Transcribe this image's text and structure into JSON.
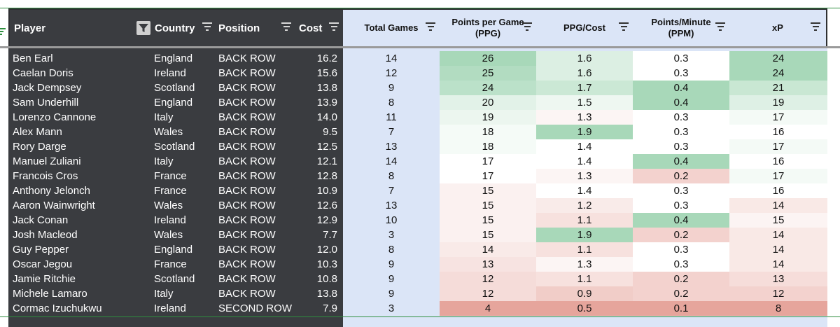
{
  "colors": {
    "dark_panel": "#3a3c40",
    "blue_panel": "#dbe5f7",
    "high": "#a8d8b9",
    "low": "#e6a59c"
  },
  "headers": {
    "player": "Player",
    "country": "Country",
    "position": "Position",
    "cost": "Cost",
    "total_games": "Total Games",
    "ppg_line1": "Points per Game",
    "ppg_line2": "(PPG)",
    "ppg_cost": "PPG/Cost",
    "ppm_line1": "Points/Minute",
    "ppm_line2": "(PPM)",
    "xp": "xP"
  },
  "rows": [
    {
      "player": "Ben Earl",
      "country": "England",
      "position": "BACK ROW",
      "cost": "16.2",
      "games": "14",
      "ppg": "26",
      "ppg_cost": "1.6",
      "ppm": "0.3",
      "xp": "24"
    },
    {
      "player": "Caelan Doris",
      "country": "Ireland",
      "position": "BACK ROW",
      "cost": "15.6",
      "games": "12",
      "ppg": "25",
      "ppg_cost": "1.6",
      "ppm": "0.3",
      "xp": "24"
    },
    {
      "player": "Jack Dempsey",
      "country": "Scotland",
      "position": "BACK ROW",
      "cost": "13.8",
      "games": "9",
      "ppg": "24",
      "ppg_cost": "1.7",
      "ppm": "0.4",
      "xp": "21"
    },
    {
      "player": "Sam Underhill",
      "country": "England",
      "position": "BACK ROW",
      "cost": "13.9",
      "games": "8",
      "ppg": "20",
      "ppg_cost": "1.5",
      "ppm": "0.4",
      "xp": "19"
    },
    {
      "player": "Lorenzo Cannone",
      "country": "Italy",
      "position": "BACK ROW",
      "cost": "14.0",
      "games": "11",
      "ppg": "19",
      "ppg_cost": "1.3",
      "ppm": "0.3",
      "xp": "17"
    },
    {
      "player": "Alex Mann",
      "country": "Wales",
      "position": "BACK ROW",
      "cost": "9.5",
      "games": "7",
      "ppg": "18",
      "ppg_cost": "1.9",
      "ppm": "0.3",
      "xp": "16"
    },
    {
      "player": "Rory Darge",
      "country": "Scotland",
      "position": "BACK ROW",
      "cost": "12.5",
      "games": "13",
      "ppg": "18",
      "ppg_cost": "1.4",
      "ppm": "0.3",
      "xp": "17"
    },
    {
      "player": "Manuel Zuliani",
      "country": "Italy",
      "position": "BACK ROW",
      "cost": "12.1",
      "games": "14",
      "ppg": "17",
      "ppg_cost": "1.4",
      "ppm": "0.4",
      "xp": "16"
    },
    {
      "player": "Francois Cros",
      "country": "France",
      "position": "BACK ROW",
      "cost": "12.8",
      "games": "8",
      "ppg": "17",
      "ppg_cost": "1.3",
      "ppm": "0.2",
      "xp": "17"
    },
    {
      "player": "Anthony Jelonch",
      "country": "France",
      "position": "BACK ROW",
      "cost": "10.9",
      "games": "7",
      "ppg": "15",
      "ppg_cost": "1.4",
      "ppm": "0.3",
      "xp": "16"
    },
    {
      "player": "Aaron Wainwright",
      "country": "Wales",
      "position": "BACK ROW",
      "cost": "12.6",
      "games": "13",
      "ppg": "15",
      "ppg_cost": "1.2",
      "ppm": "0.3",
      "xp": "14"
    },
    {
      "player": "Jack Conan",
      "country": "Ireland",
      "position": "BACK ROW",
      "cost": "12.9",
      "games": "10",
      "ppg": "15",
      "ppg_cost": "1.1",
      "ppm": "0.4",
      "xp": "15"
    },
    {
      "player": "Josh Macleod",
      "country": "Wales",
      "position": "BACK ROW",
      "cost": "7.7",
      "games": "3",
      "ppg": "15",
      "ppg_cost": "1.9",
      "ppm": "0.2",
      "xp": "14"
    },
    {
      "player": "Guy Pepper",
      "country": "England",
      "position": "BACK ROW",
      "cost": "12.0",
      "games": "8",
      "ppg": "14",
      "ppg_cost": "1.1",
      "ppm": "0.3",
      "xp": "14"
    },
    {
      "player": "Oscar Jegou",
      "country": "France",
      "position": "BACK ROW",
      "cost": "10.3",
      "games": "9",
      "ppg": "13",
      "ppg_cost": "1.3",
      "ppm": "0.3",
      "xp": "14"
    },
    {
      "player": "Jamie Ritchie",
      "country": "Scotland",
      "position": "BACK ROW",
      "cost": "10.8",
      "games": "9",
      "ppg": "12",
      "ppg_cost": "1.1",
      "ppm": "0.2",
      "xp": "13"
    },
    {
      "player": "Michele Lamaro",
      "country": "Italy",
      "position": "BACK ROW",
      "cost": "13.8",
      "games": "9",
      "ppg": "12",
      "ppg_cost": "0.9",
      "ppm": "0.2",
      "xp": "12"
    },
    {
      "player": "Cormac Izuchukwu",
      "country": "Ireland",
      "position": "SECOND ROW",
      "cost": "7.9",
      "games": "3",
      "ppg": "4",
      "ppg_cost": "0.5",
      "ppm": "0.1",
      "xp": "8"
    }
  ]
}
